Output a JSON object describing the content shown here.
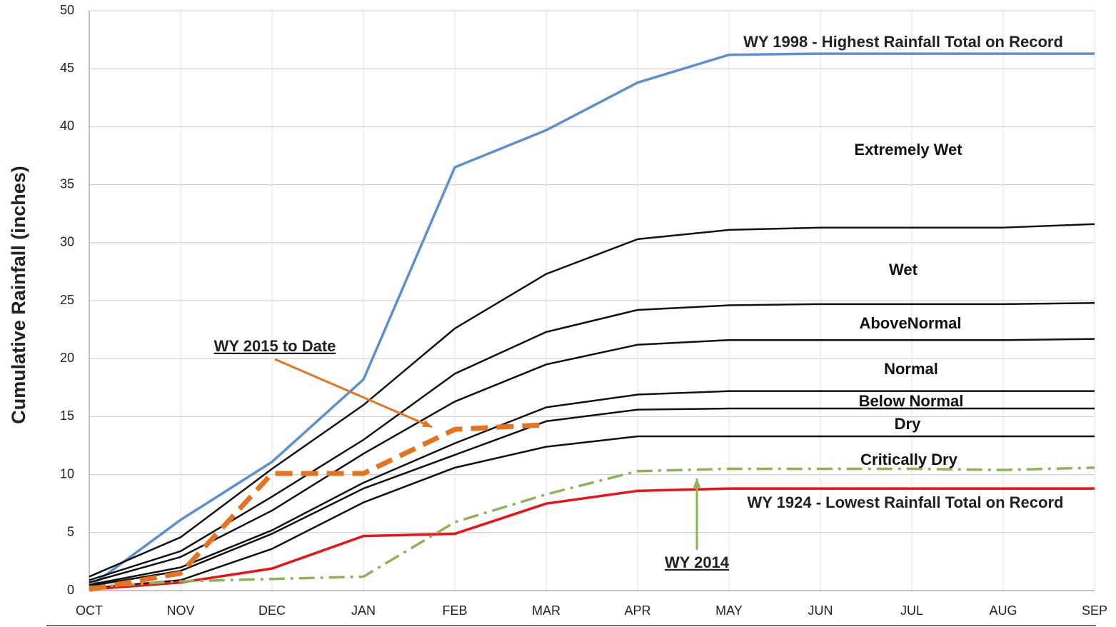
{
  "chart_data": {
    "type": "line",
    "y_label": "Cumulative Rainfall (inches)",
    "categories": [
      "OCT",
      "NOV",
      "DEC",
      "JAN",
      "FEB",
      "MAR",
      "APR",
      "MAY",
      "JUN",
      "JUL",
      "AUG",
      "SEP"
    ],
    "ylim": [
      0,
      50
    ],
    "yticks": [
      0,
      5,
      10,
      15,
      20,
      25,
      30,
      35,
      40,
      45,
      50
    ],
    "grid": true,
    "series": [
      {
        "name": "WY 1998 - Highest Rainfall Total on Record",
        "color": "#5b8fd4",
        "values": [
          0.3,
          6.1,
          11.1,
          18.2,
          36.5,
          39.7,
          43.8,
          46.2,
          46.3,
          46.3,
          46.3,
          46.3
        ]
      },
      {
        "color": "#111111",
        "values": [
          1.2,
          4.6,
          10.5,
          16.0,
          22.6,
          27.3,
          30.3,
          31.1,
          31.3,
          31.3,
          31.3,
          31.6
        ]
      },
      {
        "color": "#111111",
        "values": [
          0.9,
          3.4,
          8.1,
          13.0,
          18.7,
          22.3,
          24.2,
          24.6,
          24.7,
          24.7,
          24.7,
          24.8
        ]
      },
      {
        "color": "#111111",
        "values": [
          0.7,
          2.9,
          6.9,
          11.8,
          16.3,
          19.5,
          21.2,
          21.6,
          21.6,
          21.6,
          21.6,
          21.7
        ]
      },
      {
        "color": "#111111",
        "values": [
          0.5,
          2.0,
          5.2,
          9.3,
          12.7,
          15.8,
          16.9,
          17.2,
          17.2,
          17.2,
          17.2,
          17.2
        ]
      },
      {
        "color": "#111111",
        "values": [
          0.4,
          1.7,
          4.9,
          8.8,
          11.7,
          14.6,
          15.6,
          15.7,
          15.7,
          15.7,
          15.7,
          15.7
        ]
      },
      {
        "color": "#111111",
        "values": [
          0.2,
          0.9,
          3.6,
          7.6,
          10.6,
          12.4,
          13.3,
          13.3,
          13.3,
          13.3,
          13.3,
          13.3
        ]
      },
      {
        "name": "WY 1924 - Lowest Rainfall Total on Record",
        "color": "#ee1111",
        "values": [
          0.1,
          0.7,
          1.9,
          4.7,
          4.9,
          7.5,
          8.6,
          8.8,
          8.8,
          8.8,
          8.8,
          8.8
        ]
      },
      {
        "name": "WY 2014",
        "color": "#8db356",
        "values": [
          0.3,
          0.8,
          1.0,
          1.2,
          5.9,
          8.3,
          10.3,
          10.5,
          10.5,
          10.5,
          10.4,
          10.6
        ]
      },
      {
        "name": "WY 2015 to Date",
        "color": "#e8731e",
        "values": [
          0.1,
          1.5,
          10.1,
          10.1,
          13.9,
          14.3,
          null,
          null,
          null,
          null,
          null,
          null
        ]
      }
    ],
    "annotations": [
      "Extremely Wet",
      "Wet",
      "AboveNormal",
      "Normal",
      "Below Normal",
      "Dry",
      "Critically Dry"
    ]
  }
}
